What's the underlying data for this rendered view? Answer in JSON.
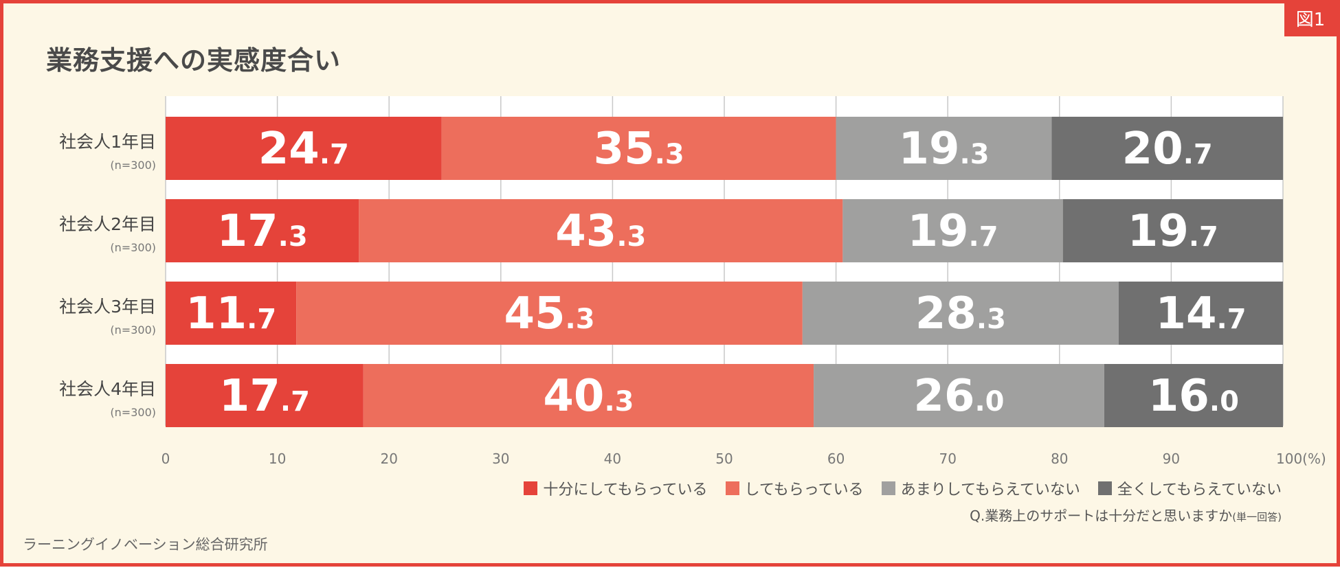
{
  "badge": "図1",
  "question": {
    "text": "Q.業務上のサポートは十分だと思いますか",
    "note": "(単一回答)"
  },
  "source": "ラーニングイノベーション総合研究所",
  "colors": [
    "#e5433a",
    "#ed6e5c",
    "#a0a09f",
    "#707070"
  ],
  "chart_data": {
    "type": "bar",
    "orientation": "horizontal",
    "stacked": true,
    "title": "業務支援への実感度合い",
    "categories": [
      "社会人1年目",
      "社会人2年目",
      "社会人3年目",
      "社会人4年目"
    ],
    "sample_sizes": [
      "(n=300)",
      "(n=300)",
      "(n=300)",
      "(n=300)"
    ],
    "series": [
      {
        "name": "十分にしてもらっている",
        "values": [
          24.7,
          17.3,
          11.7,
          17.7
        ]
      },
      {
        "name": "してもらっている",
        "values": [
          35.3,
          43.3,
          45.3,
          40.3
        ]
      },
      {
        "name": "あまりしてもらえていない",
        "values": [
          19.3,
          19.7,
          28.3,
          26.0
        ]
      },
      {
        "name": "全くしてもらえていない",
        "values": [
          20.7,
          19.7,
          14.7,
          16.0
        ]
      }
    ],
    "xlim": [
      0,
      100
    ],
    "xticks": [
      "0",
      "10",
      "20",
      "30",
      "40",
      "50",
      "60",
      "70",
      "80",
      "90",
      "100(%)"
    ],
    "grid": true,
    "legend": "bottom-right"
  }
}
